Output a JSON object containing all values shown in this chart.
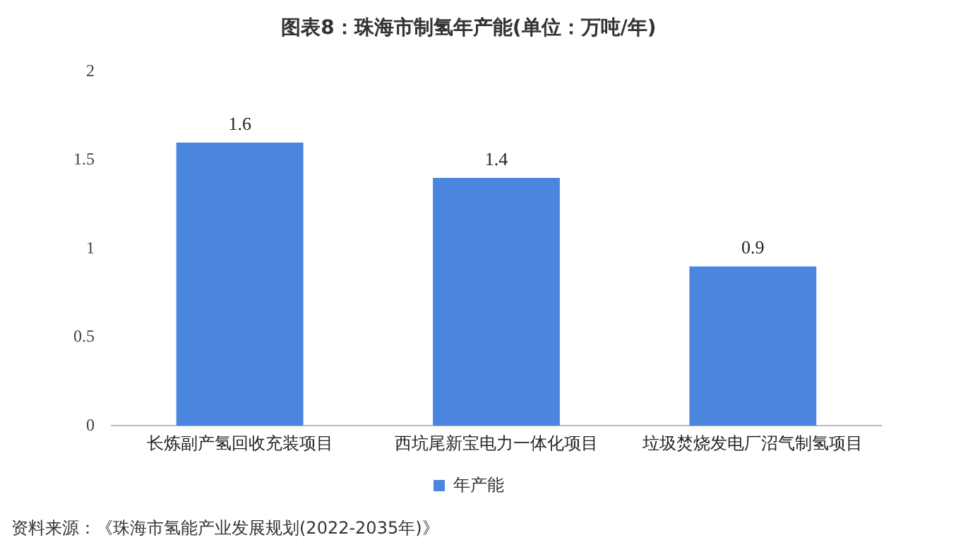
{
  "chart_data": {
    "type": "bar",
    "title": "图表8：珠海市制氢年产能(单位：万吨/年)",
    "categories": [
      "长炼副产氢回收充装项目",
      "西坑尾新宝电力一体化项目",
      "垃圾焚烧发电厂沼气制氢项目"
    ],
    "series": [
      {
        "name": "年产能",
        "color": "#4a86e0",
        "values": [
          1.6,
          1.4,
          0.9
        ]
      }
    ],
    "ylim": [
      0,
      2
    ],
    "yticks": [
      0,
      0.5,
      1,
      1.5,
      2
    ],
    "grid": false,
    "legend": "bottom",
    "data_labels": true,
    "annotations": [
      "资料来源：《珠海市氢能产业发展规划(2022-2035年)》"
    ]
  }
}
